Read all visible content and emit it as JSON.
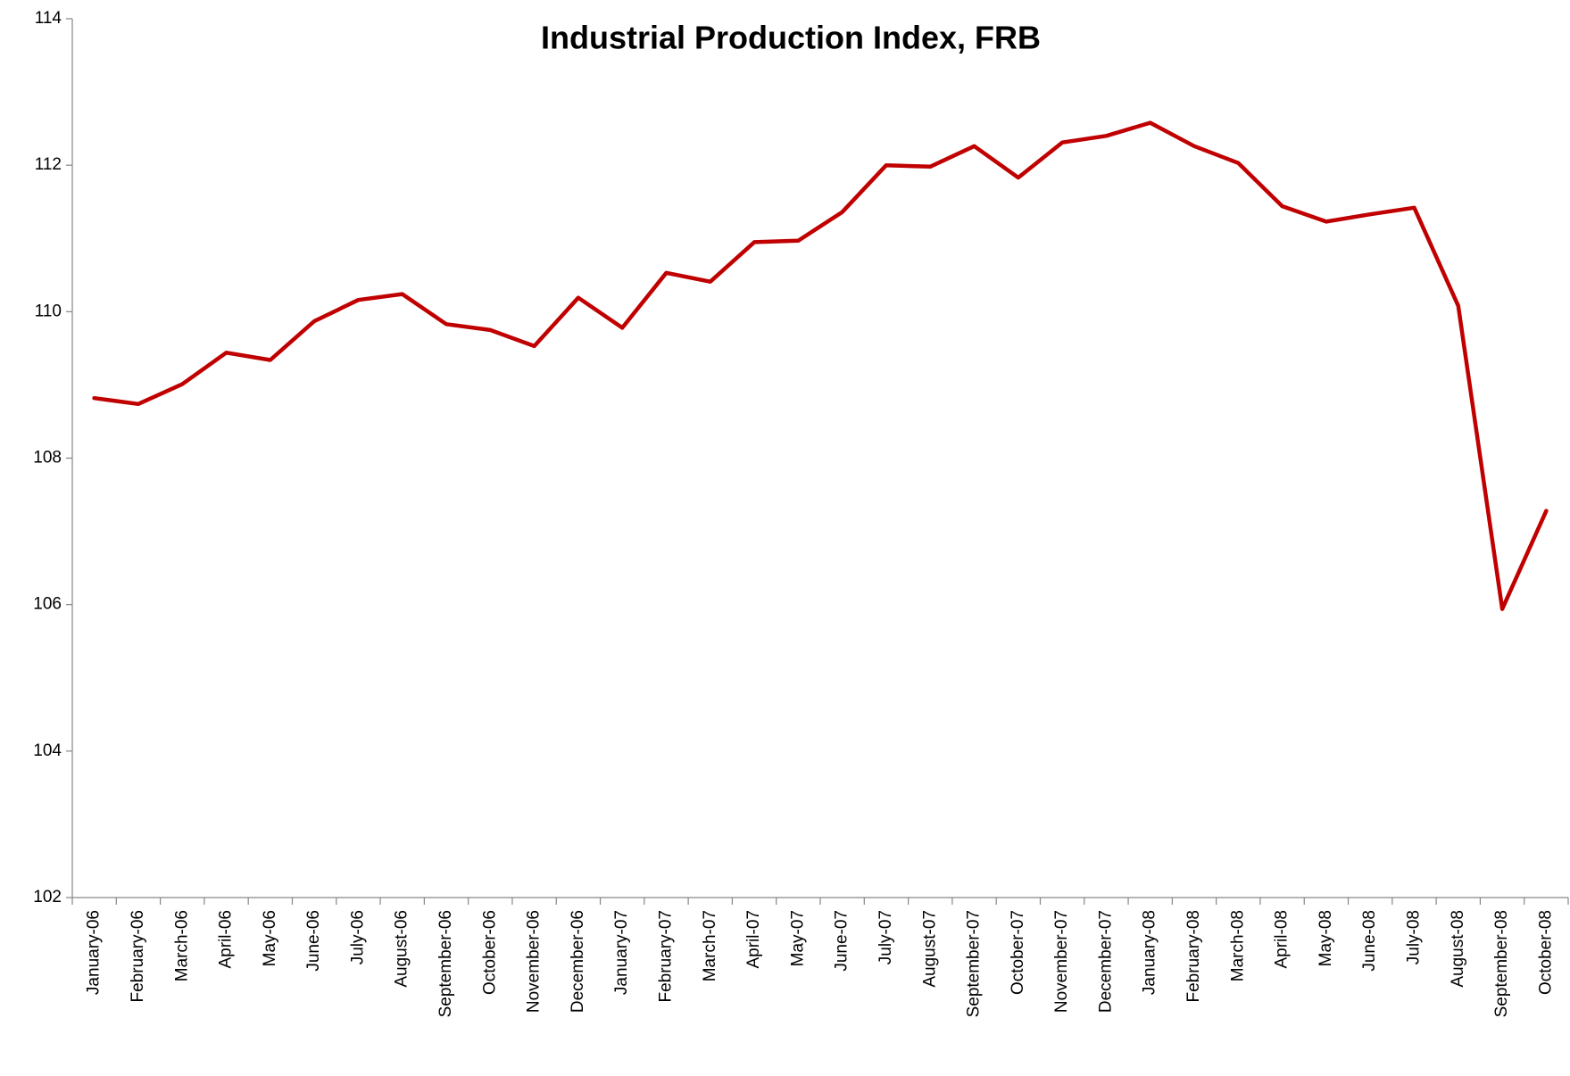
{
  "chart_data": {
    "type": "line",
    "title": "Industrial Production Index, FRB",
    "categories": [
      "January-06",
      "February-06",
      "March-06",
      "April-06",
      "May-06",
      "June-06",
      "July-06",
      "August-06",
      "September-06",
      "October-06",
      "November-06",
      "December-06",
      "January-07",
      "February-07",
      "March-07",
      "April-07",
      "May-07",
      "June-07",
      "July-07",
      "August-07",
      "September-07",
      "October-07",
      "November-07",
      "December-07",
      "January-08",
      "February-08",
      "March-08",
      "April-08",
      "May-08",
      "June-08",
      "July-08",
      "August-08",
      "September-08",
      "October-08"
    ],
    "series": [
      {
        "name": "Industrial Production Index",
        "color": "#c00000",
        "values": [
          108.82,
          108.74,
          109.01,
          109.44,
          109.34,
          109.87,
          110.16,
          110.24,
          109.83,
          109.75,
          109.53,
          110.19,
          109.78,
          110.53,
          110.41,
          110.95,
          110.97,
          111.36,
          112.0,
          111.98,
          112.26,
          111.83,
          112.31,
          112.4,
          112.58,
          112.26,
          112.03,
          111.44,
          111.23,
          111.33,
          111.42,
          110.08,
          105.94,
          107.28
        ]
      }
    ],
    "ylim": [
      102,
      114
    ],
    "yticks": [
      102,
      104,
      106,
      108,
      110,
      112,
      114
    ],
    "grid": false
  }
}
